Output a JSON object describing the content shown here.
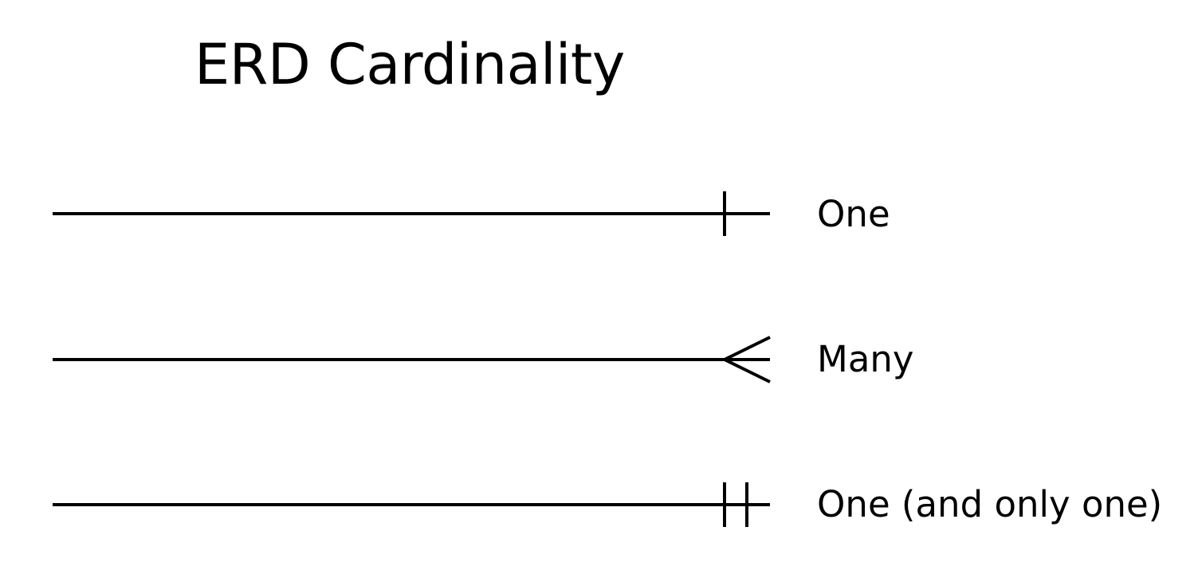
{
  "title": "ERD Cardinality",
  "rows": [
    {
      "label": "One",
      "symbol": "one"
    },
    {
      "label": "Many",
      "symbol": "many"
    },
    {
      "label": "One (and only one)",
      "symbol": "one-and-only-one"
    }
  ],
  "colors": {
    "line": "#000000",
    "background": "#ffffff"
  }
}
